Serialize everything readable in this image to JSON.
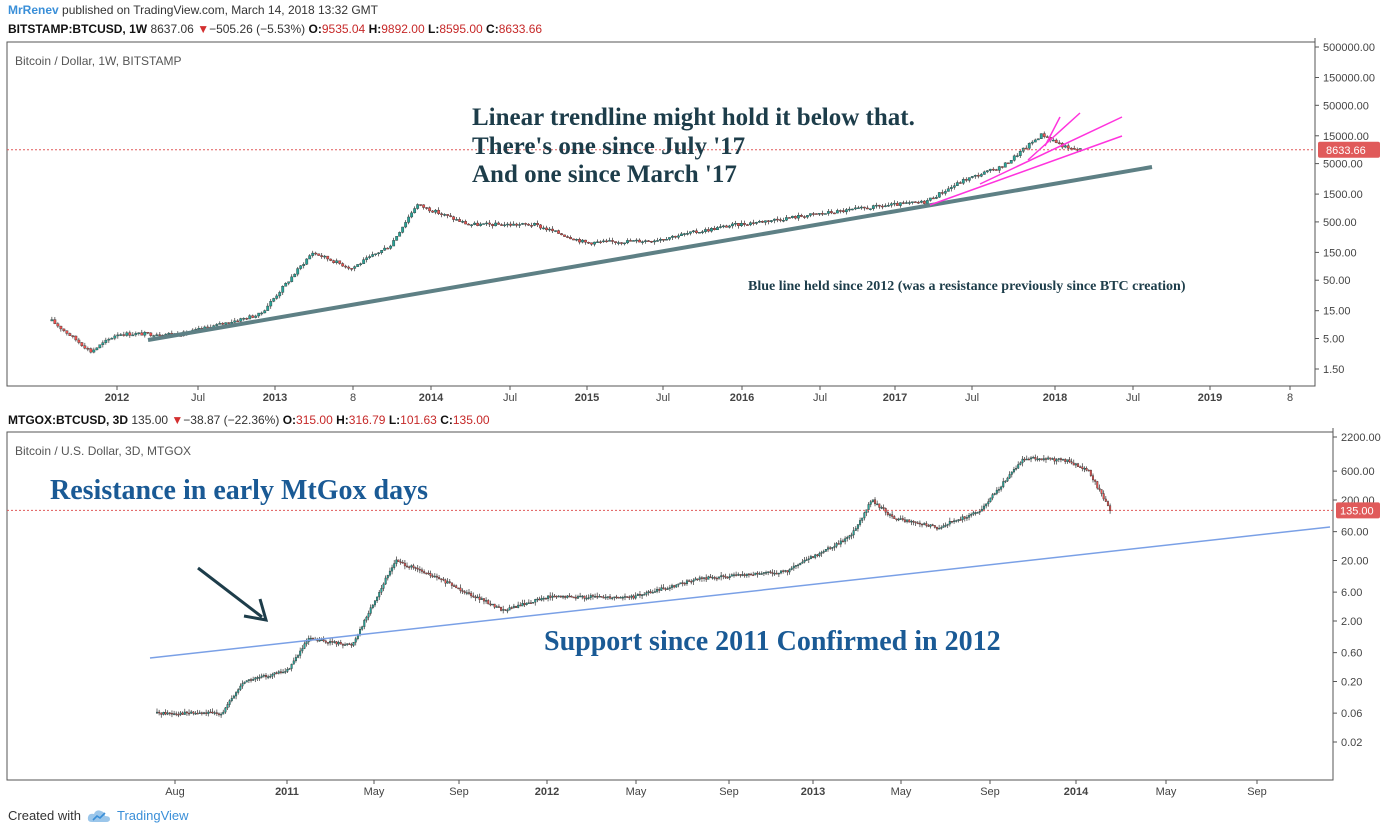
{
  "publish": {
    "author": "MrRenev",
    "text": "published on TradingView.com, March 14, 2018 13:32 GMT"
  },
  "top": {
    "symbol": "BITSTAMP:BTCUSD, 1W",
    "price": "8637.06",
    "change": "−505.26 (−5.53%)",
    "o_label": "O:",
    "o": "9535.04",
    "h_label": "H:",
    "h": "9892.00",
    "l_label": "L:",
    "l": "8595.00",
    "c_label": "C:",
    "c": "8633.66",
    "pane_title": "Bitcoin / Dollar, 1W, BITSTAMP",
    "price_badge": "8633.66"
  },
  "bottom": {
    "symbol": "MTGOX:BTCUSD, 3D",
    "price": "135.00",
    "change": "−38.87 (−22.36%)",
    "o_label": "O:",
    "o": "315.00",
    "h_label": "H:",
    "h": "316.79",
    "l_label": "L:",
    "l": "101.63",
    "c_label": "C:",
    "c": "135.00",
    "pane_title": "Bitcoin / U.S. Dollar, 3D, MTGOX",
    "price_badge": "135.00"
  },
  "footer": {
    "created_with": "Created with",
    "brand": "TradingView"
  },
  "colors": {
    "up": "#26a69a",
    "down": "#ef5350",
    "trend_top": "#5e8085",
    "trend_pink": "#ff33dd",
    "trend_bottom": "#7aa0e6",
    "annotation_dark": "#1d3d4a",
    "annotation_blue": "#1a5a95",
    "price_badge": "#e05a5a"
  },
  "chart_data": [
    {
      "type": "line",
      "title": "Bitcoin / Dollar, 1W, BITSTAMP",
      "y_scale": "log",
      "y_ticks": [
        "500000.00",
        "150000.00",
        "50000.00",
        "15000.00",
        "5000.00",
        "1500.00",
        "500.00",
        "150.00",
        "50.00",
        "15.00",
        "5.00",
        "1.50"
      ],
      "x_ticks": [
        "2012",
        "Jul",
        "2013",
        "8",
        "2014",
        "Jul",
        "2015",
        "Jul",
        "2016",
        "Jul",
        "2017",
        "Jul",
        "2018",
        "Jul",
        "2019",
        "8"
      ],
      "last_close": 8633.66,
      "series": [
        {
          "x": [
            "2011-08",
            "2011-11",
            "2012-01",
            "2012-06",
            "2012-12",
            "2013-04",
            "2013-07",
            "2013-10",
            "2013-12",
            "2014-04",
            "2014-09",
            "2015-01",
            "2015-06",
            "2015-12",
            "2016-06",
            "2016-12",
            "2017-03",
            "2017-06",
            "2017-09",
            "2017-12",
            "2018-02",
            "2018-03"
          ],
          "values": [
            10,
            3,
            6,
            6,
            13,
            150,
            80,
            200,
            1000,
            450,
            450,
            220,
            240,
            430,
            650,
            950,
            1100,
            2600,
            4500,
            16000,
            9000,
            8633.66
          ]
        }
      ],
      "annotations": [
        "Linear trendline might hold it below that.",
        "There's one since July '17",
        "And one since March '17",
        "Blue line held since 2012 (was a resistance previously since BTC creation)"
      ]
    },
    {
      "type": "line",
      "title": "Bitcoin / U.S. Dollar, 3D, MTGOX",
      "y_scale": "log",
      "y_ticks": [
        "2200.00",
        "600.00",
        "200.00",
        "60.00",
        "20.00",
        "6.00",
        "2.00",
        "0.60",
        "0.20",
        "0.06",
        "0.02"
      ],
      "x_ticks": [
        "Aug",
        "2011",
        "May",
        "Sep",
        "2012",
        "May",
        "Sep",
        "2013",
        "May",
        "Sep",
        "2014",
        "May",
        "Sep"
      ],
      "last_close": 135.0,
      "series": [
        {
          "x": [
            "2010-07",
            "2010-09",
            "2010-10",
            "2010-11",
            "2011-01",
            "2011-02",
            "2011-04",
            "2011-06",
            "2011-08",
            "2011-11",
            "2012-01",
            "2012-05",
            "2012-08",
            "2012-12",
            "2013-03",
            "2013-04",
            "2013-05",
            "2013-07",
            "2013-09",
            "2013-11",
            "2014-01",
            "2014-02",
            "2014-03"
          ],
          "values": [
            0.06,
            0.06,
            0.06,
            0.2,
            0.3,
            1.0,
            0.8,
            20,
            10,
            3,
            5,
            5,
            10,
            13,
            50,
            200,
            100,
            70,
            130,
            1000,
            900,
            600,
            135
          ]
        }
      ],
      "annotations": [
        "Resistance in early MtGox days",
        "Support since 2011 Confirmed in 2012"
      ]
    }
  ]
}
